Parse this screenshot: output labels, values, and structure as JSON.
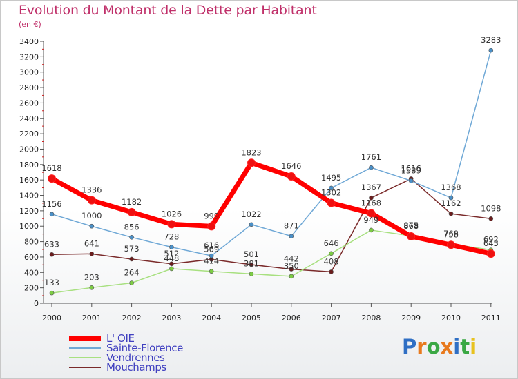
{
  "header": {
    "title": "Evolution du Montant de la Dette par Habitant",
    "subtitle": "(en €)"
  },
  "chart_data": {
    "type": "line",
    "title": "Evolution du Montant de la Dette par Habitant",
    "subtitle": "(en €)",
    "xlabel": "",
    "ylabel": "",
    "x": [
      "2000",
      "2001",
      "2002",
      "2003",
      "2004",
      "2005",
      "2006",
      "2007",
      "2008",
      "2009",
      "2010",
      "2011"
    ],
    "ylim": [
      0,
      3400
    ],
    "yticks": [
      0,
      200,
      400,
      600,
      800,
      1000,
      1200,
      1400,
      1600,
      1800,
      2000,
      2200,
      2400,
      2600,
      2800,
      3000,
      3200,
      3400
    ],
    "grid": false,
    "legend_position": "bottom-left",
    "series": [
      {
        "name": "L' OIE",
        "color": "#ff0000",
        "marker": "#ee1010",
        "width": 7,
        "values": [
          1618,
          1336,
          1182,
          1026,
          999,
          1823,
          1646,
          1302,
          1168,
          868,
          758,
          643
        ],
        "labels": [
          "1618",
          "1336",
          "1182",
          "1026",
          "999",
          "1823",
          "1646",
          "1302",
          "1168",
          "868",
          "758",
          "643"
        ]
      },
      {
        "name": "Sainte-Florence",
        "color": "#6fa8d6",
        "marker": "#4a90c8",
        "width": 1.5,
        "values": [
          1156,
          1000,
          856,
          728,
          616,
          1022,
          871,
          1495,
          1761,
          1589,
          1368,
          3283
        ],
        "labels": [
          "1156",
          "1000",
          "856",
          "728",
          "616",
          "1022",
          "871",
          "1495",
          "1761",
          "1589",
          "1368",
          "3283"
        ]
      },
      {
        "name": "Vendrennes",
        "color": "#a8e080",
        "marker": "#7ccc44",
        "width": 1.5,
        "values": [
          133,
          203,
          264,
          448,
          414,
          381,
          350,
          646,
          949,
          875,
          768,
          692
        ],
        "labels": [
          "133",
          "203",
          "264",
          "448",
          "414",
          "381",
          "350",
          "646",
          "949",
          "875",
          "768",
          "692"
        ]
      },
      {
        "name": "Mouchamps",
        "color": "#7a2a2a",
        "marker": "#6b1c1c",
        "width": 1.5,
        "values": [
          633,
          641,
          573,
          512,
          569,
          501,
          442,
          408,
          1367,
          1616,
          1162,
          1098
        ],
        "labels": [
          "633",
          "641",
          "573",
          "512",
          "569",
          "501",
          "442",
          "408",
          "1367",
          "1616",
          "1162",
          "1098"
        ]
      }
    ]
  },
  "legend": {
    "items": [
      {
        "label": "L' OIE",
        "color": "#ff0000",
        "thickness": 7
      },
      {
        "label": "Sainte-Florence",
        "color": "#6fa8d6",
        "thickness": 2
      },
      {
        "label": "Vendrennes",
        "color": "#a8e080",
        "thickness": 2
      },
      {
        "label": "Mouchamps",
        "color": "#7a2a2a",
        "thickness": 2
      }
    ],
    "label_color": "#4040c0"
  },
  "logo": {
    "text": "Proxiti",
    "letter_colors": [
      "#2f6fc4",
      "#e87a1e",
      "#3aa844",
      "#e87a1e",
      "#2f6fc4",
      "#3aa844",
      "#e8c21e"
    ]
  }
}
